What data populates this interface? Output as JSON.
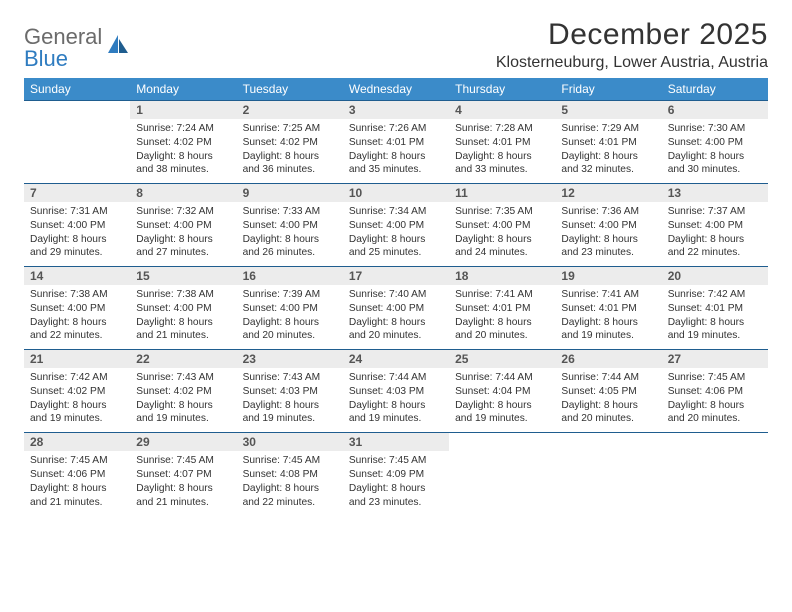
{
  "brand": {
    "line1": "General",
    "line2": "Blue"
  },
  "title": "December 2025",
  "location": "Klosterneuburg, Lower Austria, Austria",
  "colors": {
    "header_bg": "#3b8bc9",
    "header_text": "#ffffff",
    "rule": "#1f5d8f",
    "daynum_bg": "#ececec",
    "daynum_text": "#555555",
    "body_text": "#333333",
    "logo_gray": "#6b6b6b",
    "logo_blue": "#2f7cc0",
    "page_bg": "#ffffff"
  },
  "typography": {
    "title_fontsize": 30,
    "location_fontsize": 16,
    "weekday_fontsize": 12,
    "daynum_fontsize": 12,
    "detail_fontsize": 10.2
  },
  "weekdays": [
    "Sunday",
    "Monday",
    "Tuesday",
    "Wednesday",
    "Thursday",
    "Friday",
    "Saturday"
  ],
  "weeks": [
    [
      null,
      {
        "n": "1",
        "sunrise": "7:24 AM",
        "sunset": "4:02 PM",
        "daylight": "8 hours and 38 minutes."
      },
      {
        "n": "2",
        "sunrise": "7:25 AM",
        "sunset": "4:02 PM",
        "daylight": "8 hours and 36 minutes."
      },
      {
        "n": "3",
        "sunrise": "7:26 AM",
        "sunset": "4:01 PM",
        "daylight": "8 hours and 35 minutes."
      },
      {
        "n": "4",
        "sunrise": "7:28 AM",
        "sunset": "4:01 PM",
        "daylight": "8 hours and 33 minutes."
      },
      {
        "n": "5",
        "sunrise": "7:29 AM",
        "sunset": "4:01 PM",
        "daylight": "8 hours and 32 minutes."
      },
      {
        "n": "6",
        "sunrise": "7:30 AM",
        "sunset": "4:00 PM",
        "daylight": "8 hours and 30 minutes."
      }
    ],
    [
      {
        "n": "7",
        "sunrise": "7:31 AM",
        "sunset": "4:00 PM",
        "daylight": "8 hours and 29 minutes."
      },
      {
        "n": "8",
        "sunrise": "7:32 AM",
        "sunset": "4:00 PM",
        "daylight": "8 hours and 27 minutes."
      },
      {
        "n": "9",
        "sunrise": "7:33 AM",
        "sunset": "4:00 PM",
        "daylight": "8 hours and 26 minutes."
      },
      {
        "n": "10",
        "sunrise": "7:34 AM",
        "sunset": "4:00 PM",
        "daylight": "8 hours and 25 minutes."
      },
      {
        "n": "11",
        "sunrise": "7:35 AM",
        "sunset": "4:00 PM",
        "daylight": "8 hours and 24 minutes."
      },
      {
        "n": "12",
        "sunrise": "7:36 AM",
        "sunset": "4:00 PM",
        "daylight": "8 hours and 23 minutes."
      },
      {
        "n": "13",
        "sunrise": "7:37 AM",
        "sunset": "4:00 PM",
        "daylight": "8 hours and 22 minutes."
      }
    ],
    [
      {
        "n": "14",
        "sunrise": "7:38 AM",
        "sunset": "4:00 PM",
        "daylight": "8 hours and 22 minutes."
      },
      {
        "n": "15",
        "sunrise": "7:38 AM",
        "sunset": "4:00 PM",
        "daylight": "8 hours and 21 minutes."
      },
      {
        "n": "16",
        "sunrise": "7:39 AM",
        "sunset": "4:00 PM",
        "daylight": "8 hours and 20 minutes."
      },
      {
        "n": "17",
        "sunrise": "7:40 AM",
        "sunset": "4:00 PM",
        "daylight": "8 hours and 20 minutes."
      },
      {
        "n": "18",
        "sunrise": "7:41 AM",
        "sunset": "4:01 PM",
        "daylight": "8 hours and 20 minutes."
      },
      {
        "n": "19",
        "sunrise": "7:41 AM",
        "sunset": "4:01 PM",
        "daylight": "8 hours and 19 minutes."
      },
      {
        "n": "20",
        "sunrise": "7:42 AM",
        "sunset": "4:01 PM",
        "daylight": "8 hours and 19 minutes."
      }
    ],
    [
      {
        "n": "21",
        "sunrise": "7:42 AM",
        "sunset": "4:02 PM",
        "daylight": "8 hours and 19 minutes."
      },
      {
        "n": "22",
        "sunrise": "7:43 AM",
        "sunset": "4:02 PM",
        "daylight": "8 hours and 19 minutes."
      },
      {
        "n": "23",
        "sunrise": "7:43 AM",
        "sunset": "4:03 PM",
        "daylight": "8 hours and 19 minutes."
      },
      {
        "n": "24",
        "sunrise": "7:44 AM",
        "sunset": "4:03 PM",
        "daylight": "8 hours and 19 minutes."
      },
      {
        "n": "25",
        "sunrise": "7:44 AM",
        "sunset": "4:04 PM",
        "daylight": "8 hours and 19 minutes."
      },
      {
        "n": "26",
        "sunrise": "7:44 AM",
        "sunset": "4:05 PM",
        "daylight": "8 hours and 20 minutes."
      },
      {
        "n": "27",
        "sunrise": "7:45 AM",
        "sunset": "4:06 PM",
        "daylight": "8 hours and 20 minutes."
      }
    ],
    [
      {
        "n": "28",
        "sunrise": "7:45 AM",
        "sunset": "4:06 PM",
        "daylight": "8 hours and 21 minutes."
      },
      {
        "n": "29",
        "sunrise": "7:45 AM",
        "sunset": "4:07 PM",
        "daylight": "8 hours and 21 minutes."
      },
      {
        "n": "30",
        "sunrise": "7:45 AM",
        "sunset": "4:08 PM",
        "daylight": "8 hours and 22 minutes."
      },
      {
        "n": "31",
        "sunrise": "7:45 AM",
        "sunset": "4:09 PM",
        "daylight": "8 hours and 23 minutes."
      },
      null,
      null,
      null
    ]
  ],
  "labels": {
    "sunrise": "Sunrise:",
    "sunset": "Sunset:",
    "daylight": "Daylight:"
  }
}
